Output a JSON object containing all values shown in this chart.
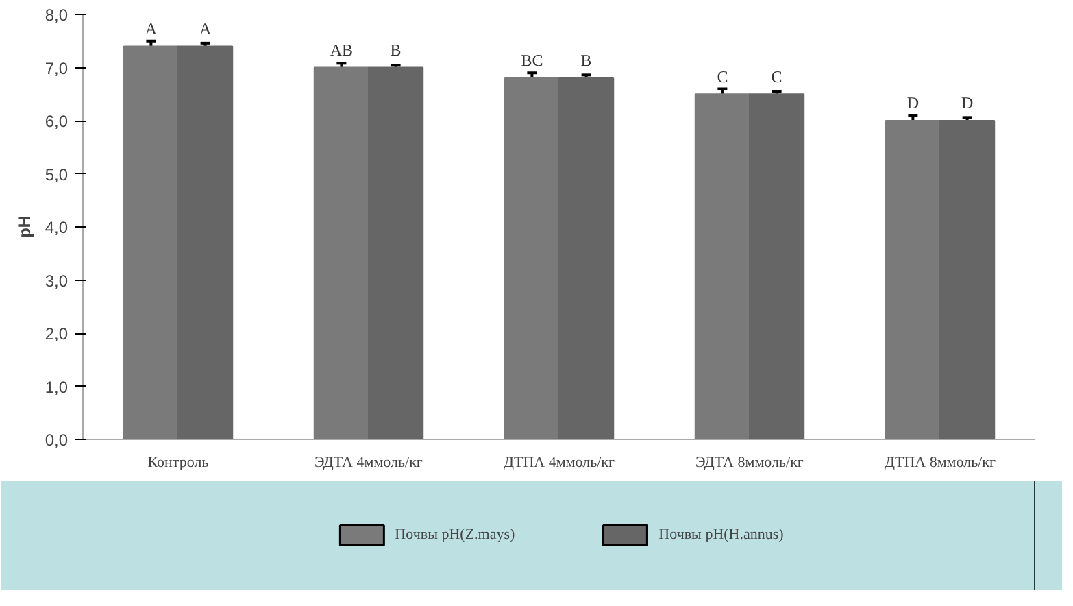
{
  "chart_data": {
    "type": "bar",
    "ylabel": "pH",
    "categories": [
      "Контроль",
      "ЭДТА 4ммоль/кг",
      "ДТПА 4ммоль/кг",
      "ЭДТА 8ммоль/кг",
      "ДТПА 8ммоль/кг"
    ],
    "series": [
      {
        "name": "Почвы pH(Z.mays)",
        "color": "#7a7a7a",
        "values": [
          7.4,
          7.0,
          6.8,
          6.5,
          6.0
        ],
        "errors": [
          0.1,
          0.08,
          0.1,
          0.1,
          0.1
        ]
      },
      {
        "name": "Почвы pH(H.annus)",
        "color": "#666666",
        "values": [
          7.4,
          7.0,
          6.8,
          6.5,
          6.0
        ],
        "errors": [
          0.06,
          0.04,
          0.06,
          0.05,
          0.06
        ]
      }
    ],
    "annotations": [
      {
        "text": "A",
        "x": "Контроль",
        "y": 7.4
      },
      {
        "text": "A",
        "x": "Контроль",
        "y": 7.4
      },
      {
        "text": "AB",
        "x": "ЭДТА 4ммоль/кг",
        "y": 7.0
      },
      {
        "text": "B",
        "x": "ЭДТА 4ммоль/кг",
        "y": 7.0
      },
      {
        "text": "BC",
        "x": "ДТПА 4ммоль/кг",
        "y": 6.8
      },
      {
        "text": "B",
        "x": "ДТПА 4ммоль/кг",
        "y": 6.8
      },
      {
        "text": "C",
        "x": "ЭДТА 8ммоль/кг",
        "y": 6.5
      },
      {
        "text": "C",
        "x": "ЭДТА 8ммоль/кг",
        "y": 6.5
      },
      {
        "text": "D",
        "x": "ДТПА 8ммоль/кг",
        "y": 6.0
      },
      {
        "text": "D",
        "x": "ДТПА 8ммоль/кг",
        "y": 6.0
      }
    ],
    "ylim": [
      0,
      8
    ],
    "yticks": [
      {
        "value": 0,
        "label": "0,0"
      },
      {
        "value": 1,
        "label": "1,0"
      },
      {
        "value": 2,
        "label": "2,0"
      },
      {
        "value": 3,
        "label": "3,0"
      },
      {
        "value": 4,
        "label": "4,0"
      },
      {
        "value": 5,
        "label": "5,0"
      },
      {
        "value": 6,
        "label": "6,0"
      },
      {
        "value": 7,
        "label": "7,0"
      },
      {
        "value": 8,
        "label": "8,0"
      }
    ],
    "grid": false,
    "legend": "bottom"
  }
}
